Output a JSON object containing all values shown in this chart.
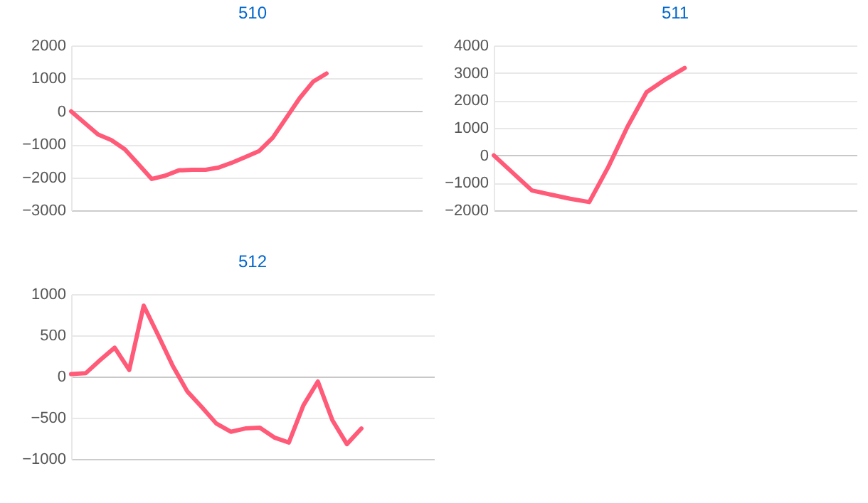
{
  "chart_data": [
    {
      "type": "line",
      "title": "510",
      "categories": [
        null,
        null,
        null,
        null,
        null,
        null,
        null,
        null,
        null,
        null,
        null,
        null,
        null,
        null,
        null,
        null,
        null,
        null,
        null,
        null,
        null,
        null,
        null,
        null,
        null,
        null,
        null,
        null
      ],
      "series": [
        {
          "color": "#ff5a78",
          "values": [
            0,
            -350,
            -700,
            -870,
            -1150,
            -1600,
            -2050,
            -1950,
            -1790,
            -1770,
            -1770,
            -1700,
            -1550,
            -1380,
            -1200,
            -800,
            -200,
            400,
            900,
            1150,
            null,
            null,
            null,
            null,
            null,
            null,
            null,
            null
          ]
        }
      ],
      "ylim": [
        -3000,
        2000
      ],
      "yticks": [
        -3000,
        -2000,
        -1000,
        0,
        1000,
        2000
      ],
      "grid": "y",
      "tick_labels": "y"
    },
    {
      "type": "line",
      "title": "511",
      "categories": [
        null,
        null,
        null,
        null,
        null,
        null,
        null,
        null,
        null,
        null,
        null,
        null,
        null,
        null,
        null,
        null,
        null,
        null,
        null,
        null
      ],
      "series": [
        {
          "color": "#ff5a78",
          "values": [
            0,
            -640,
            -1280,
            -1430,
            -1580,
            -1700,
            -420,
            1040,
            2300,
            2770,
            3180,
            null,
            null,
            null,
            null,
            null,
            null,
            null,
            null,
            null
          ]
        }
      ],
      "ylim": [
        -2000,
        4000
      ],
      "yticks": [
        -2000,
        -1000,
        0,
        1000,
        2000,
        3000,
        4000
      ],
      "grid": "y",
      "tick_labels": "y"
    },
    {
      "type": "line",
      "title": "512",
      "categories": [
        null,
        null,
        null,
        null,
        null,
        null,
        null,
        null,
        null,
        null,
        null,
        null,
        null,
        null,
        null,
        null,
        null,
        null,
        null,
        null,
        null,
        null,
        null,
        null,
        null,
        null
      ],
      "series": [
        {
          "color": "#ff5a78",
          "values": [
            30,
            40,
            200,
            350,
            80,
            860,
            500,
            130,
            -180,
            -370,
            -570,
            -670,
            -630,
            -620,
            -740,
            -800,
            -350,
            -60,
            -530,
            -820,
            -630,
            null,
            null,
            null,
            null,
            null
          ]
        }
      ],
      "ylim": [
        -1000,
        1000
      ],
      "yticks": [
        -1000,
        -500,
        0,
        500,
        1000
      ],
      "grid": "y",
      "tick_labels": "y"
    }
  ]
}
